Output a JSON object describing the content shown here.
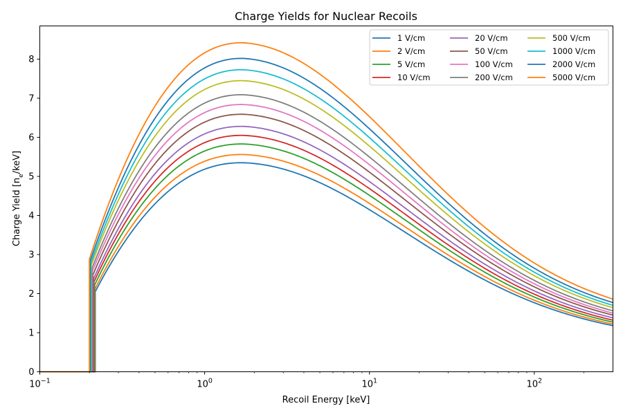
{
  "chart_data": {
    "type": "line",
    "title": "Charge Yields for Nuclear Recoils",
    "xlabel": "Recoil Energy [keV]",
    "ylabel": "Charge Yield [n",
    "ylabel_sub": "e",
    "ylabel_end": "/keV]",
    "x_scale": "log",
    "xlim": [
      0.1,
      300
    ],
    "ylim": [
      0,
      8.85
    ],
    "x_ticks": [
      {
        "value": 0.1,
        "base": "10",
        "exp": "−1"
      },
      {
        "value": 1,
        "base": "10",
        "exp": "0"
      },
      {
        "value": 10,
        "base": "10",
        "exp": "1"
      },
      {
        "value": 100,
        "base": "10",
        "exp": "2"
      }
    ],
    "y_ticks": [
      "0",
      "1",
      "2",
      "3",
      "4",
      "5",
      "6",
      "7",
      "8"
    ],
    "grid": false,
    "legend_position": "top-right",
    "legend_columns": 3,
    "series": [
      {
        "name": "1 V/cm",
        "color": "#1f77b4",
        "threshold": 0.217,
        "jump": 2.05,
        "peak": 5.35,
        "end": 1.18
      },
      {
        "name": "2 V/cm",
        "color": "#ff7f0e",
        "threshold": 0.216,
        "jump": 2.12,
        "peak": 5.56,
        "end": 1.22
      },
      {
        "name": "5 V/cm",
        "color": "#2ca02c",
        "threshold": 0.215,
        "jump": 2.22,
        "peak": 5.83,
        "end": 1.27
      },
      {
        "name": "10 V/cm",
        "color": "#d62728",
        "threshold": 0.213,
        "jump": 2.3,
        "peak": 6.05,
        "end": 1.32
      },
      {
        "name": "20 V/cm",
        "color": "#9467bd",
        "threshold": 0.212,
        "jump": 2.38,
        "peak": 6.28,
        "end": 1.38
      },
      {
        "name": "50 V/cm",
        "color": "#8c564b",
        "threshold": 0.21,
        "jump": 2.48,
        "peak": 6.59,
        "end": 1.45
      },
      {
        "name": "100 V/cm",
        "color": "#e377c2",
        "threshold": 0.208,
        "jump": 2.56,
        "peak": 6.84,
        "end": 1.5
      },
      {
        "name": "200 V/cm",
        "color": "#7f7f7f",
        "threshold": 0.207,
        "jump": 2.64,
        "peak": 7.09,
        "end": 1.56
      },
      {
        "name": "500 V/cm",
        "color": "#bcbd22",
        "threshold": 0.205,
        "jump": 2.72,
        "peak": 7.45,
        "end": 1.64
      },
      {
        "name": "1000 V/cm",
        "color": "#17becf",
        "threshold": 0.204,
        "jump": 2.78,
        "peak": 7.73,
        "end": 1.7
      },
      {
        "name": "2000 V/cm",
        "color": "#1f77b4",
        "threshold": 0.202,
        "jump": 2.83,
        "peak": 8.02,
        "end": 1.77
      },
      {
        "name": "5000 V/cm",
        "color": "#ff7f0e",
        "threshold": 0.2,
        "jump": 2.88,
        "peak": 8.42,
        "end": 1.86
      }
    ]
  }
}
